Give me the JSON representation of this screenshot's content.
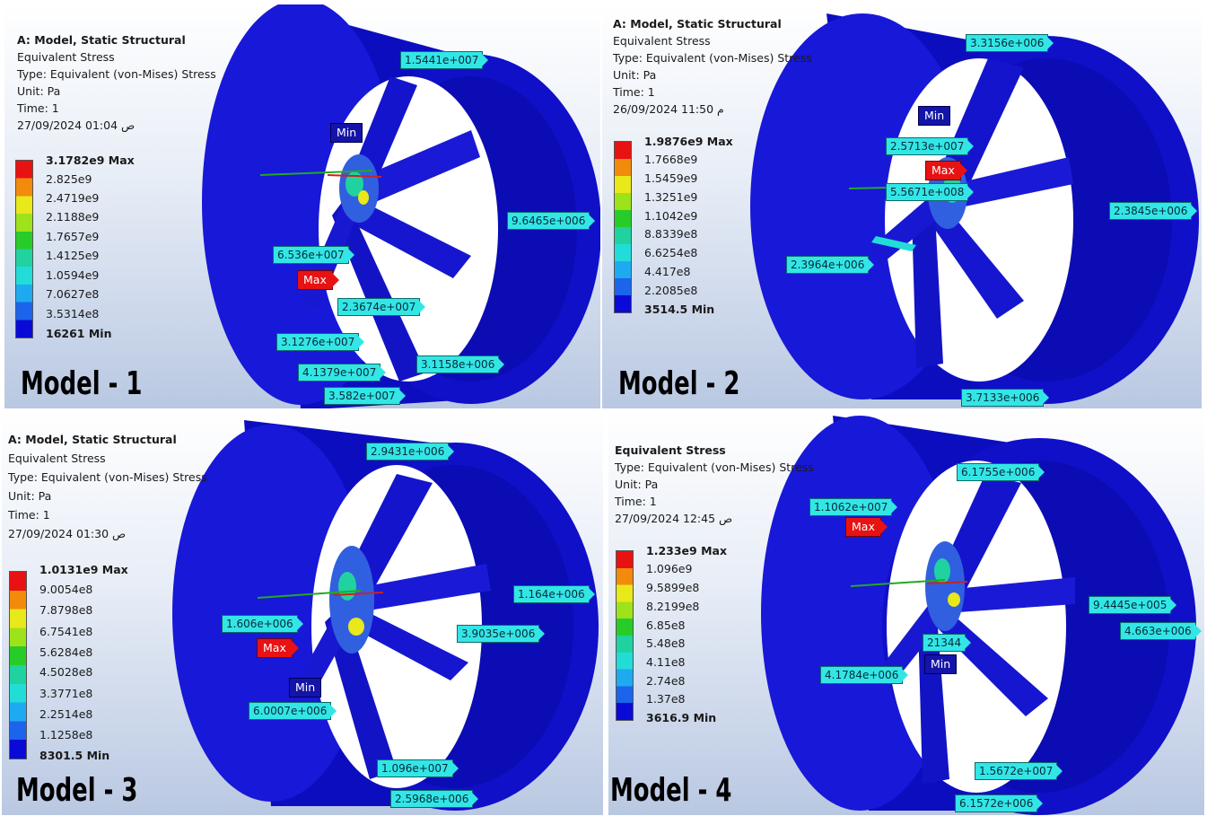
{
  "legend_colors": [
    "#e81212",
    "#f28a0c",
    "#e8e81a",
    "#9ee21a",
    "#28cc28",
    "#20d2a0",
    "#22dcd8",
    "#1eaaf0",
    "#1c64ec",
    "#0a0ad8"
  ],
  "panels": [
    {
      "info": {
        "title": "A: Model, Static Structural",
        "result": "Equivalent Stress",
        "type": "Type: Equivalent (von-Mises) Stress",
        "unit": "Unit: Pa",
        "time": "Time: 1",
        "date": "27/09/2024 01:04 ص"
      },
      "legend": [
        "3.1782e9 Max",
        "2.825e9",
        "2.4719e9",
        "2.1188e9",
        "1.7657e9",
        "1.4125e9",
        "1.0594e9",
        "7.0627e8",
        "3.5314e8",
        "16261 Min"
      ],
      "model_label": "Model - 1",
      "probes": [
        "1.5441e+007",
        "9.6465e+006",
        "6.536e+007",
        "2.3674e+007",
        "3.1276e+007",
        "3.1158e+006",
        "4.1379e+007",
        "3.582e+007"
      ],
      "min_label": "Min",
      "max_label": "Max"
    },
    {
      "info": {
        "title": "A: Model, Static Structural",
        "result": "Equivalent Stress",
        "type": "Type: Equivalent (von-Mises) Stress",
        "unit": "Unit: Pa",
        "time": "Time: 1",
        "date": "26/09/2024 11:50 م"
      },
      "legend": [
        "1.9876e9 Max",
        "1.7668e9",
        "1.5459e9",
        "1.3251e9",
        "1.1042e9",
        "8.8339e8",
        "6.6254e8",
        "4.417e8",
        "2.2085e8",
        "3514.5 Min"
      ],
      "model_label": "Model - 2",
      "probes": [
        "3.3156e+006",
        "2.5713e+007",
        "5.5671e+008",
        "2.3845e+006",
        "2.3964e+006",
        "3.7133e+006"
      ],
      "min_label": "Min",
      "max_label": "Max"
    },
    {
      "info": {
        "title": "A: Model, Static Structural",
        "result": "Equivalent Stress",
        "type": "Type: Equivalent (von-Mises) Stress",
        "unit": "Unit: Pa",
        "time": "Time: 1",
        "date": "27/09/2024 01:30 ص"
      },
      "legend": [
        "1.0131e9 Max",
        "9.0054e8",
        "7.8798e8",
        "6.7541e8",
        "5.6284e8",
        "4.5028e8",
        "3.3771e8",
        "2.2514e8",
        "1.1258e8",
        "8301.5 Min"
      ],
      "model_label": "Model - 3",
      "probes": [
        "2.9431e+006",
        "1.164e+006",
        "1.606e+006",
        "3.9035e+006",
        "6.0007e+006",
        "1.096e+007",
        "2.5968e+006"
      ],
      "min_label": "Min",
      "max_label": "Max"
    },
    {
      "info": {
        "title": "",
        "result": "Equivalent Stress",
        "type": "Type: Equivalent (von-Mises) Stress",
        "unit": "Unit: Pa",
        "time": "Time: 1",
        "date": "27/09/2024 12:45 ص"
      },
      "legend": [
        "1.233e9 Max",
        "1.096e9",
        "9.5899e8",
        "8.2199e8",
        "6.85e8",
        "5.48e8",
        "4.11e8",
        "2.74e8",
        "1.37e8",
        "3616.9 Min"
      ],
      "model_label": "Model - 4",
      "probes": [
        "6.1755e+006",
        "1.1062e+007",
        "9.4445e+005",
        "4.663e+006",
        "21344",
        "4.1784e+006",
        "1.5672e+007",
        "6.1572e+006"
      ],
      "min_label": "Min",
      "max_label": "Max"
    }
  ]
}
